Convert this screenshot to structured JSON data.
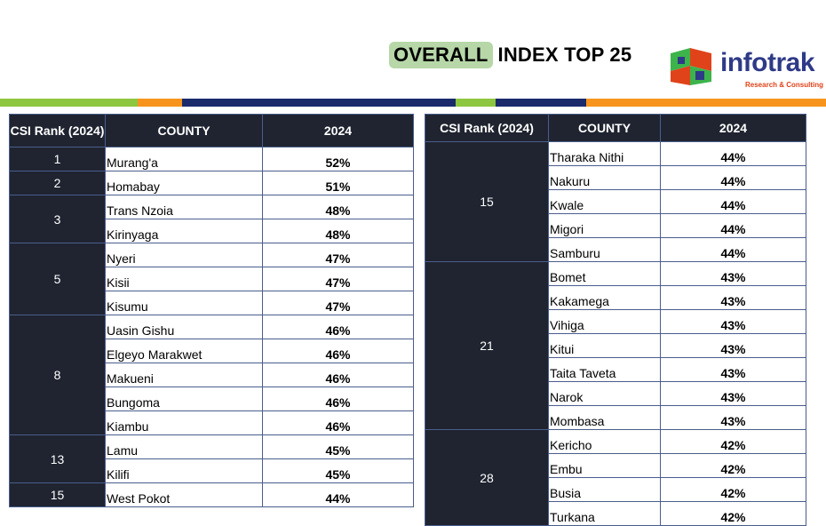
{
  "title": {
    "highlight": "OVERALL",
    "rest": "INDEX TOP 25"
  },
  "logo": {
    "name_main": "infotrak",
    "tagline": "Research & Consulting"
  },
  "stripe_colors": [
    "#8dc63f",
    "#f7941d",
    "#1b2a6b",
    "#8dc63f",
    "#1b2a6b",
    "#f7941d"
  ],
  "left_table": {
    "headers": [
      "CSI Rank (2024)",
      "COUNTY",
      "2024"
    ],
    "groups": [
      {
        "rank": "1",
        "rows": [
          {
            "county": "Murang'a",
            "pct": "52%"
          }
        ]
      },
      {
        "rank": "2",
        "rows": [
          {
            "county": "Homabay",
            "pct": "51%"
          }
        ]
      },
      {
        "rank": "3",
        "rows": [
          {
            "county": "Trans Nzoia",
            "pct": "48%"
          },
          {
            "county": "Kirinyaga",
            "pct": "48%"
          }
        ]
      },
      {
        "rank": "5",
        "rows": [
          {
            "county": "Nyeri",
            "pct": "47%"
          },
          {
            "county": "Kisii",
            "pct": "47%"
          },
          {
            "county": "Kisumu",
            "pct": "47%"
          }
        ]
      },
      {
        "rank": "8",
        "rows": [
          {
            "county": "Uasin Gishu",
            "pct": "46%"
          },
          {
            "county": "Elgeyo Marakwet",
            "pct": "46%"
          },
          {
            "county": "Makueni",
            "pct": "46%"
          },
          {
            "county": "Bungoma",
            "pct": "46%"
          },
          {
            "county": "Kiambu",
            "pct": "46%"
          }
        ]
      },
      {
        "rank": "13",
        "rows": [
          {
            "county": "Lamu",
            "pct": "45%"
          },
          {
            "county": "Kilifi",
            "pct": "45%"
          }
        ]
      },
      {
        "rank": "15",
        "rows": [
          {
            "county": "West Pokot",
            "pct": "44%"
          }
        ]
      }
    ]
  },
  "right_table": {
    "headers": [
      "CSI Rank (2024)",
      "COUNTY",
      "2024"
    ],
    "groups": [
      {
        "rank": "15",
        "rows": [
          {
            "county": "Tharaka Nithi",
            "pct": "44%"
          },
          {
            "county": "Nakuru",
            "pct": "44%"
          },
          {
            "county": "Kwale",
            "pct": "44%"
          },
          {
            "county": "Migori",
            "pct": "44%"
          },
          {
            "county": "Samburu",
            "pct": "44%"
          }
        ]
      },
      {
        "rank": "21",
        "rows": [
          {
            "county": "Bomet",
            "pct": "43%"
          },
          {
            "county": "Kakamega",
            "pct": "43%"
          },
          {
            "county": "Vihiga",
            "pct": "43%"
          },
          {
            "county": "Kitui",
            "pct": "43%"
          },
          {
            "county": "Taita Taveta",
            "pct": "43%"
          },
          {
            "county": "Narok",
            "pct": "43%"
          },
          {
            "county": "Mombasa",
            "pct": "43%"
          }
        ]
      },
      {
        "rank": "28",
        "rows": [
          {
            "county": "Kericho",
            "pct": "42%"
          },
          {
            "county": "Embu",
            "pct": "42%"
          },
          {
            "county": "Busia",
            "pct": "42%"
          },
          {
            "county": "Turkana",
            "pct": "42%"
          }
        ]
      }
    ]
  }
}
